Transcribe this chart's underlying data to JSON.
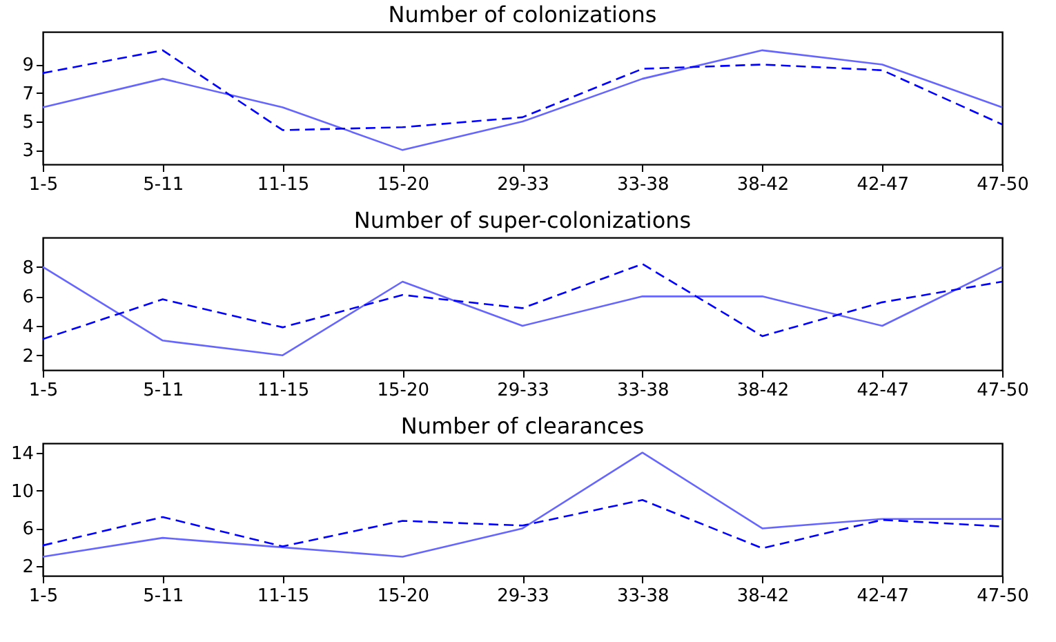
{
  "chart_data": [
    {
      "type": "line",
      "title": "Number of colonizations",
      "categories": [
        "1-5",
        "5-11",
        "11-15",
        "15-20",
        "29-33",
        "33-38",
        "38-42",
        "42-47",
        "47-50"
      ],
      "ylim": [
        2,
        11.3
      ],
      "yticks": [
        3,
        5,
        7,
        9
      ],
      "grid": false,
      "marker": "none",
      "series": [
        {
          "color": "#6666ff",
          "line_style": "solid",
          "values": [
            6,
            8,
            6,
            3,
            5,
            8,
            10,
            9,
            6
          ]
        },
        {
          "color": "#0000ff",
          "line_style": "dashed",
          "values": [
            8.4,
            10,
            4.4,
            4.6,
            5.3,
            8.7,
            9,
            8.6,
            4.8
          ]
        }
      ]
    },
    {
      "type": "line",
      "title": "Number of super-colonizations",
      "categories": [
        "1-5",
        "5-11",
        "11-15",
        "15-20",
        "29-33",
        "33-38",
        "38-42",
        "42-47",
        "47-50"
      ],
      "ylim": [
        1,
        10
      ],
      "yticks": [
        2,
        4,
        6,
        8
      ],
      "grid": false,
      "marker": "none",
      "series": [
        {
          "color": "#6666ff",
          "line_style": "solid",
          "values": [
            8,
            3,
            2,
            7,
            4,
            6,
            6,
            4,
            8
          ]
        },
        {
          "color": "#0000ff",
          "line_style": "dashed",
          "values": [
            3.1,
            5.8,
            3.9,
            6.1,
            5.2,
            8.2,
            3.3,
            5.6,
            7
          ]
        }
      ]
    },
    {
      "type": "line",
      "title": "Number of clearances",
      "categories": [
        "1-5",
        "5-11",
        "11-15",
        "15-20",
        "29-33",
        "33-38",
        "38-42",
        "42-47",
        "47-50"
      ],
      "ylim": [
        1,
        15
      ],
      "yticks": [
        2,
        6,
        10,
        14
      ],
      "grid": false,
      "marker": "none",
      "series": [
        {
          "color": "#6666ff",
          "line_style": "solid",
          "values": [
            3,
            5,
            4,
            3,
            6,
            14,
            6,
            7,
            7
          ]
        },
        {
          "color": "#0000ff",
          "line_style": "dashed",
          "values": [
            4.2,
            7.2,
            4.1,
            6.8,
            6.3,
            9,
            3.9,
            6.9,
            6.2
          ]
        }
      ]
    }
  ]
}
